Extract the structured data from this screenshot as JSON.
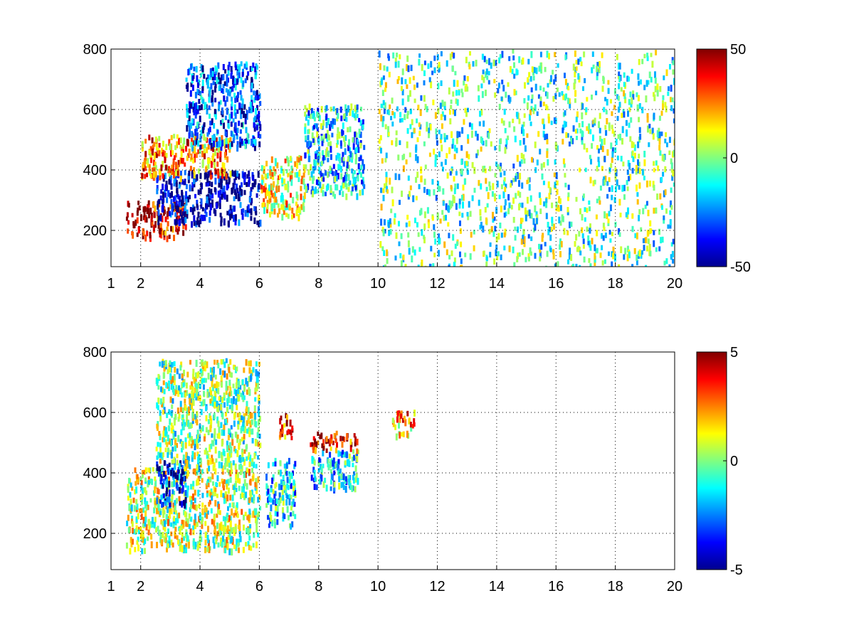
{
  "chart_data": [
    {
      "type": "heatmap",
      "title": "",
      "xlabel": "",
      "ylabel": "",
      "xlim": [
        1,
        20
      ],
      "ylim": [
        80,
        800
      ],
      "x_ticks": [
        1,
        2,
        4,
        6,
        8,
        10,
        12,
        14,
        16,
        18,
        20
      ],
      "y_ticks": [
        200,
        400,
        600,
        800
      ],
      "grid": true,
      "colormap": "jet",
      "clim": [
        -50,
        50
      ],
      "colorbar_ticks": [
        -50,
        0,
        50
      ],
      "description_of_field": [
        {
          "x_range": [
            1.5,
            3.5
          ],
          "y_range": [
            180,
            300
          ],
          "value": 40
        },
        {
          "x_range": [
            2.5,
            6.0
          ],
          "y_range": [
            230,
            400
          ],
          "value": -45
        },
        {
          "x_range": [
            2.0,
            5.0
          ],
          "y_range": [
            380,
            520
          ],
          "value": 25
        },
        {
          "x_range": [
            3.5,
            6.0
          ],
          "y_range": [
            480,
            760
          ],
          "value": -30
        },
        {
          "x_range": [
            6.0,
            7.5
          ],
          "y_range": [
            250,
            450
          ],
          "value": 10
        },
        {
          "x_range": [
            7.5,
            9.5
          ],
          "y_range": [
            320,
            620
          ],
          "value": -15
        },
        {
          "x_range": [
            10.0,
            20.0
          ],
          "y_range": [
            80,
            800
          ],
          "value": -5
        }
      ],
      "colors": {
        "low": "#00008f",
        "mid": "#80ff80",
        "high": "#800000"
      }
    },
    {
      "type": "heatmap",
      "title": "",
      "xlabel": "",
      "ylabel": "",
      "xlim": [
        1,
        20
      ],
      "ylim": [
        80,
        800
      ],
      "x_ticks": [
        1,
        2,
        4,
        6,
        8,
        10,
        12,
        14,
        16,
        18,
        20
      ],
      "y_ticks": [
        200,
        400,
        600,
        800
      ],
      "grid": true,
      "colormap": "jet",
      "clim": [
        -5,
        5
      ],
      "colorbar_ticks": [
        -5,
        0,
        5
      ],
      "description_of_field": [
        {
          "x_range": [
            1.5,
            6.0
          ],
          "y_range": [
            150,
            420
          ],
          "value": 0.5
        },
        {
          "x_range": [
            2.5,
            3.5
          ],
          "y_range": [
            300,
            450
          ],
          "value": -4
        },
        {
          "x_range": [
            2.5,
            6.0
          ],
          "y_range": [
            420,
            780
          ],
          "value": 0
        },
        {
          "x_range": [
            6.2,
            7.2
          ],
          "y_range": [
            230,
            450
          ],
          "value": -1.5
        },
        {
          "x_range": [
            6.6,
            7.1
          ],
          "y_range": [
            520,
            600
          ],
          "value": 3.5
        },
        {
          "x_range": [
            7.7,
            9.3
          ],
          "y_range": [
            350,
            480
          ],
          "value": -1.5
        },
        {
          "x_range": [
            7.7,
            9.3
          ],
          "y_range": [
            480,
            540
          ],
          "value": 4
        },
        {
          "x_range": [
            10.4,
            11.2
          ],
          "y_range": [
            530,
            610
          ],
          "value": 2
        }
      ],
      "colors": {
        "low": "#00008f",
        "mid": "#80ff80",
        "high": "#800000"
      }
    }
  ]
}
